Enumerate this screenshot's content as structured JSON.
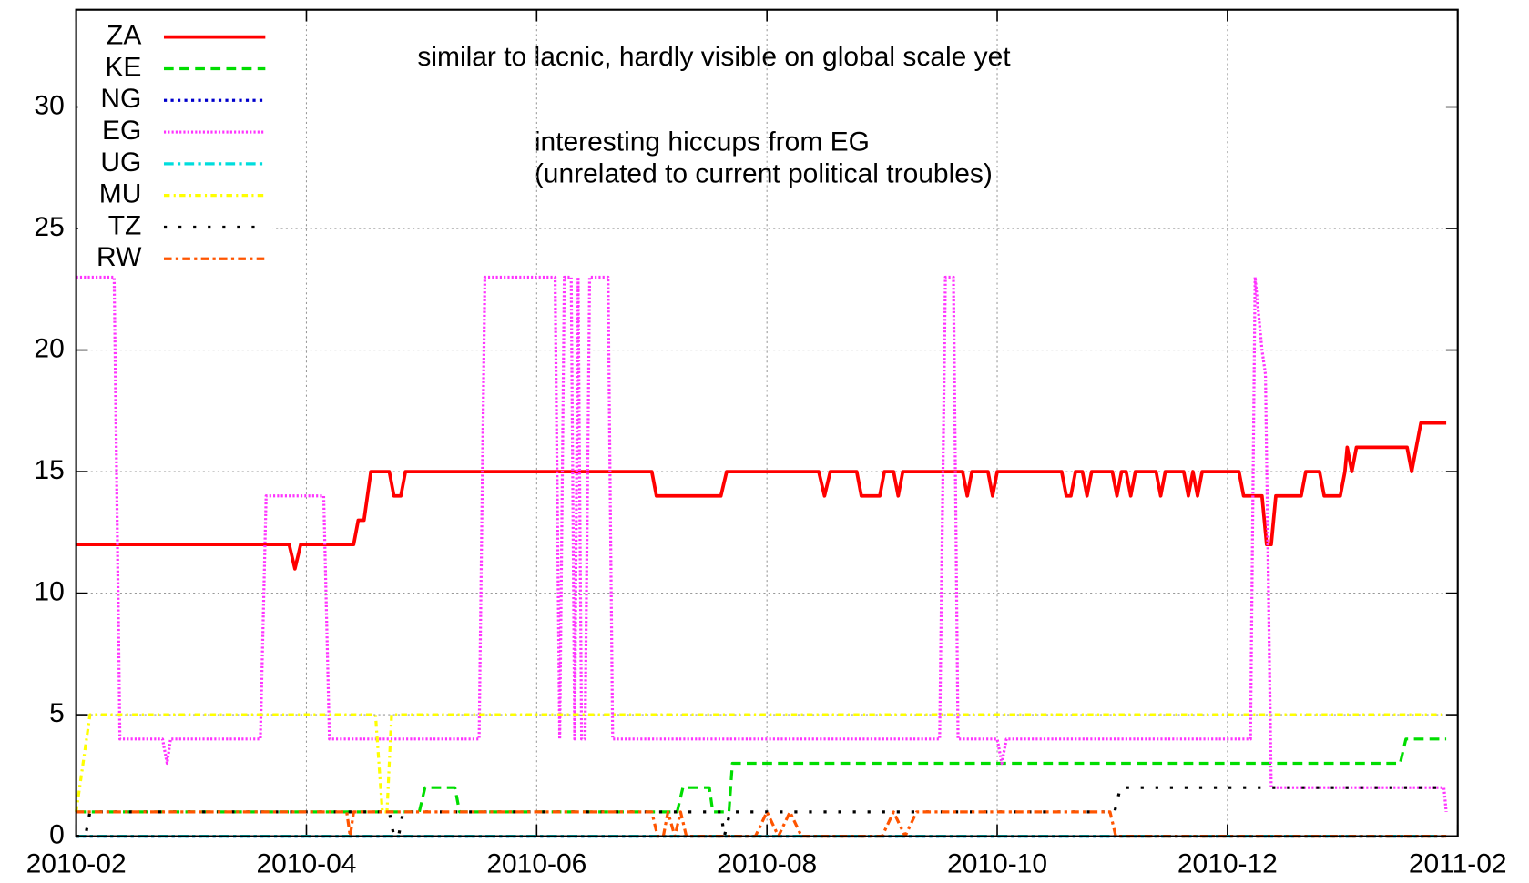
{
  "chart_data": {
    "type": "line",
    "annotations": [
      "similar to lacnic, hardly visible on global scale yet",
      "interesting hiccups from EG",
      "(unrelated to current political troubles)"
    ],
    "xlim": [
      0,
      12
    ],
    "xticks": [
      {
        "value": 0,
        "label": "2010-02"
      },
      {
        "value": 2,
        "label": "2010-04"
      },
      {
        "value": 4,
        "label": "2010-06"
      },
      {
        "value": 6,
        "label": "2010-08"
      },
      {
        "value": 8,
        "label": "2010-10"
      },
      {
        "value": 10,
        "label": "2010-12"
      },
      {
        "value": 12,
        "label": "2011-02"
      }
    ],
    "ylim": [
      0,
      34
    ],
    "yticks": [
      0,
      5,
      10,
      15,
      20,
      25,
      30
    ],
    "grid": true,
    "legend": "top-left",
    "series": [
      {
        "name": "ZA",
        "color": "#ff0000",
        "dash": "none",
        "x": [
          0,
          1.85,
          1.9,
          1.95,
          2.41,
          2.45,
          2.5,
          2.56,
          2.72,
          2.76,
          2.82,
          2.86,
          5.0,
          5.04,
          5.6,
          5.65,
          6.45,
          6.5,
          6.55,
          6.78,
          6.82,
          6.98,
          7.02,
          7.1,
          7.14,
          7.18,
          7.7,
          7.74,
          7.78,
          7.92,
          7.96,
          8.0,
          8.56,
          8.6,
          8.64,
          8.68,
          8.74,
          8.78,
          8.82,
          9.0,
          9.04,
          9.08,
          9.12,
          9.16,
          9.2,
          9.38,
          9.42,
          9.46,
          9.62,
          9.66,
          9.7,
          9.74,
          9.78,
          10.1,
          10.14,
          10.3,
          10.34,
          10.38,
          10.42,
          10.64,
          10.68,
          10.8,
          10.84,
          10.98,
          11.02,
          11.04,
          11.08,
          11.12,
          11.56,
          11.6,
          11.68,
          11.9
        ],
        "values": [
          12,
          12,
          11,
          12,
          12,
          13,
          13,
          15,
          15,
          14,
          14,
          15,
          15,
          14,
          14,
          15,
          15,
          14,
          15,
          15,
          14,
          14,
          15,
          15,
          14,
          15,
          15,
          14,
          15,
          15,
          14,
          15,
          15,
          14,
          14,
          15,
          15,
          14,
          15,
          15,
          14,
          15,
          15,
          14,
          15,
          15,
          14,
          15,
          15,
          14,
          15,
          14,
          15,
          15,
          14,
          14,
          12,
          12,
          14,
          14,
          15,
          15,
          14,
          14,
          15,
          16,
          15,
          16,
          16,
          15,
          17,
          17
        ]
      },
      {
        "name": "KE",
        "color": "#00dd00",
        "dash": "10,6",
        "x": [
          0,
          2.98,
          3.03,
          3.29,
          3.33,
          5.22,
          5.27,
          5.5,
          5.53,
          5.67,
          5.7,
          11.5,
          11.55,
          11.9
        ],
        "values": [
          1,
          1,
          2,
          2,
          1,
          1,
          2,
          2,
          1,
          1,
          3,
          3,
          4,
          4
        ]
      },
      {
        "name": "NG",
        "color": "#0000cc",
        "dash": "3,4",
        "x": [
          0,
          11.9
        ],
        "values": [
          0,
          0
        ]
      },
      {
        "name": "EG",
        "color": "#ff33ff",
        "dash": "2,2",
        "x": [
          0,
          0.33,
          0.38,
          0.75,
          0.79,
          0.82,
          1.6,
          1.65,
          2.15,
          2.2,
          3.5,
          3.55,
          4.16,
          4.2,
          4.24,
          4.3,
          4.33,
          4.36,
          4.39,
          4.42,
          4.46,
          4.62,
          4.66,
          7.5,
          7.55,
          7.62,
          7.66,
          8.0,
          8.04,
          8.08,
          10.2,
          10.24,
          10.3,
          10.33,
          10.38,
          11.88,
          11.9
        ],
        "values": [
          23,
          23,
          4,
          4,
          3,
          4,
          4,
          14,
          14,
          4,
          4,
          23,
          23,
          4,
          23,
          23,
          4,
          23,
          4,
          4,
          23,
          23,
          4,
          4,
          23,
          23,
          4,
          4,
          3,
          4,
          4,
          23,
          20,
          19,
          2,
          2,
          1
        ]
      },
      {
        "name": "UG",
        "color": "#00dddd",
        "dash": "10,4,3,4",
        "x": [
          0,
          11.9
        ],
        "values": [
          0,
          0
        ]
      },
      {
        "name": "MU",
        "color": "#ffff00",
        "dash": "6,4,2,4",
        "x": [
          0,
          0.12,
          2.6,
          2.66,
          2.7,
          2.74,
          11.9
        ],
        "values": [
          1,
          5,
          5,
          1,
          1,
          5,
          5
        ]
      },
      {
        "name": "TZ",
        "color": "#000000",
        "dash": "3,12",
        "x": [
          0,
          0.08,
          0.12,
          2.72,
          2.76,
          2.8,
          2.84,
          5.6,
          5.63,
          5.68,
          9.02,
          9.07,
          11.9
        ],
        "values": [
          0,
          0,
          1,
          1,
          0,
          0,
          1,
          1,
          0,
          1,
          1,
          2,
          2
        ]
      },
      {
        "name": "RW",
        "color": "#ff5500",
        "dash": "8,4,3,4",
        "x": [
          0,
          2.35,
          2.38,
          2.41,
          5.0,
          5.05,
          5.1,
          5.14,
          5.2,
          5.25,
          5.3,
          5.9,
          6.0,
          6.1,
          6.2,
          6.3,
          7.0,
          7.1,
          7.2,
          7.3,
          8.98,
          9.03,
          11.9
        ],
        "values": [
          1,
          1,
          0,
          1,
          1,
          0,
          0,
          1,
          0,
          1,
          0,
          0,
          1,
          0,
          1,
          0,
          0,
          1,
          0,
          1,
          1,
          0,
          0
        ]
      }
    ]
  }
}
